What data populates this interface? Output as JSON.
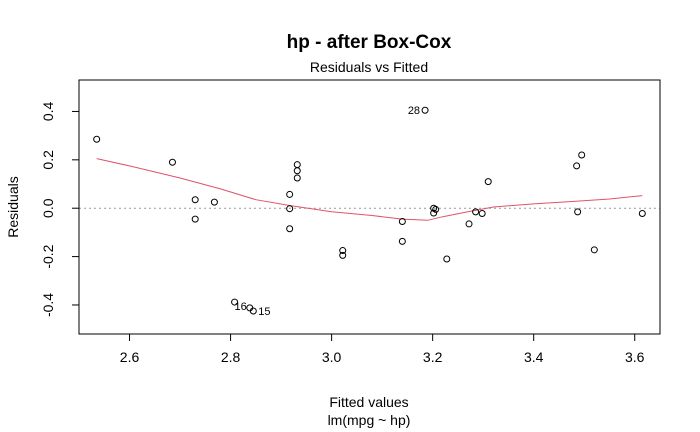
{
  "chart_data": {
    "type": "scatter",
    "title": "hp - after Box-Cox",
    "subtitle": "Residuals vs Fitted",
    "xlabel": "Fitted values",
    "xlabel2": "lm(mpg ~ hp)",
    "ylabel": "Residuals",
    "xlim": [
      2.5,
      3.65
    ],
    "ylim": [
      -0.52,
      0.53
    ],
    "xticks": [
      2.6,
      2.8,
      3.0,
      3.2,
      3.4,
      3.6
    ],
    "xtick_labels": [
      "2.6",
      "2.8",
      "3.0",
      "3.2",
      "3.4",
      "3.6"
    ],
    "yticks": [
      -0.4,
      -0.2,
      0.0,
      0.2,
      0.4
    ],
    "ytick_labels": [
      "-0.4",
      "-0.2",
      "0.0",
      "0.2",
      "0.4"
    ],
    "reference_line_y": 0,
    "colors": {
      "smooth": "#DF536B",
      "reference": "#999999",
      "points": "#000000"
    },
    "points": [
      {
        "x": 2.535,
        "y": 0.285
      },
      {
        "x": 2.685,
        "y": 0.19
      },
      {
        "x": 2.73,
        "y": 0.035
      },
      {
        "x": 2.73,
        "y": -0.045
      },
      {
        "x": 2.768,
        "y": 0.025
      },
      {
        "x": 2.808,
        "y": -0.388
      },
      {
        "x": 2.838,
        "y": -0.412,
        "label": "16"
      },
      {
        "x": 2.845,
        "y": -0.425,
        "label": "15"
      },
      {
        "x": 2.917,
        "y": 0.057
      },
      {
        "x": 2.917,
        "y": -0.002
      },
      {
        "x": 2.917,
        "y": -0.085
      },
      {
        "x": 2.932,
        "y": 0.18
      },
      {
        "x": 2.932,
        "y": 0.155
      },
      {
        "x": 2.932,
        "y": 0.125
      },
      {
        "x": 3.022,
        "y": -0.175
      },
      {
        "x": 3.022,
        "y": -0.195
      },
      {
        "x": 3.14,
        "y": -0.055
      },
      {
        "x": 3.14,
        "y": -0.137
      },
      {
        "x": 3.185,
        "y": 0.405,
        "label": "28"
      },
      {
        "x": 3.202,
        "y": 0.0
      },
      {
        "x": 3.202,
        "y": -0.02
      },
      {
        "x": 3.206,
        "y": -0.005
      },
      {
        "x": 3.228,
        "y": -0.21
      },
      {
        "x": 3.272,
        "y": -0.065
      },
      {
        "x": 3.285,
        "y": -0.015
      },
      {
        "x": 3.298,
        "y": -0.022
      },
      {
        "x": 3.31,
        "y": 0.11
      },
      {
        "x": 3.485,
        "y": 0.175
      },
      {
        "x": 3.487,
        "y": -0.015
      },
      {
        "x": 3.495,
        "y": 0.22
      },
      {
        "x": 3.52,
        "y": -0.172
      },
      {
        "x": 3.615,
        "y": -0.022
      }
    ],
    "smooth_line": [
      {
        "x": 2.535,
        "y": 0.205
      },
      {
        "x": 2.6,
        "y": 0.175
      },
      {
        "x": 2.7,
        "y": 0.125
      },
      {
        "x": 2.78,
        "y": 0.08
      },
      {
        "x": 2.85,
        "y": 0.035
      },
      {
        "x": 2.92,
        "y": 0.01
      },
      {
        "x": 3.0,
        "y": -0.015
      },
      {
        "x": 3.08,
        "y": -0.03
      },
      {
        "x": 3.14,
        "y": -0.045
      },
      {
        "x": 3.19,
        "y": -0.05
      },
      {
        "x": 3.22,
        "y": -0.035
      },
      {
        "x": 3.27,
        "y": -0.015
      },
      {
        "x": 3.32,
        "y": 0.005
      },
      {
        "x": 3.4,
        "y": 0.018
      },
      {
        "x": 3.48,
        "y": 0.028
      },
      {
        "x": 3.55,
        "y": 0.038
      },
      {
        "x": 3.615,
        "y": 0.052
      }
    ]
  }
}
